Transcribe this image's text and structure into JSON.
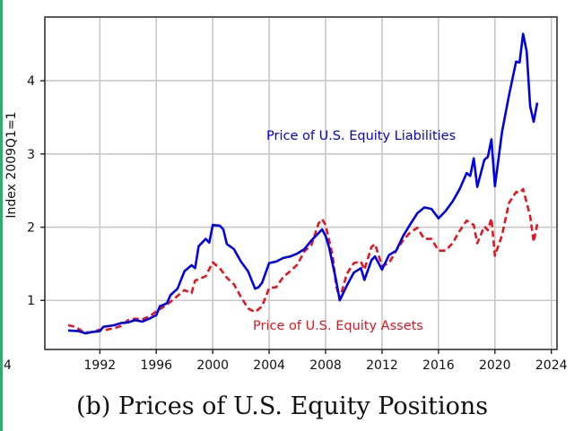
{
  "caption": "(b) Prices of U.S. Equity Positions",
  "stray_label": "4",
  "chart_data": {
    "type": "line",
    "title": "",
    "xlabel": "",
    "ylabel": "Index 2009Q1=1",
    "xlim": [
      1988.1,
      2024.4
    ],
    "ylim": [
      0.33,
      4.87
    ],
    "grid": true,
    "xticks": [
      1992,
      1996,
      2000,
      2004,
      2008,
      2012,
      2016,
      2020,
      2024
    ],
    "xtick_labels": [
      "1992",
      "1996",
      "2000",
      "2004",
      "2008",
      "2012",
      "2016",
      "2020",
      "2024"
    ],
    "yticks": [
      1,
      2,
      3,
      4
    ],
    "ytick_labels": [
      "1",
      "2",
      "3",
      "4"
    ],
    "legend": "none (inline annotations)",
    "series": [
      {
        "name": "Price of U.S. Equity Liabilities",
        "color": "#0000e6",
        "style": "solid",
        "annotation": "Price of U.S. Equity Liabilities",
        "x": [
          1989.75,
          1990.5,
          1991,
          1991.5,
          1992,
          1992.25,
          1993,
          1993.5,
          1994,
          1994.5,
          1995,
          1995.5,
          1996,
          1996.25,
          1996.75,
          1997,
          1997.5,
          1998,
          1998.5,
          1998.75,
          1999,
          1999.5,
          1999.75,
          2000,
          2000.5,
          2000.75,
          2001,
          2001.5,
          2002,
          2002.5,
          2003,
          2003.25,
          2003.5,
          2004,
          2004.5,
          2005,
          2005.5,
          2006,
          2006.5,
          2007,
          2007.5,
          2007.75,
          2008,
          2008.25,
          2008.75,
          2009,
          2009.5,
          2010,
          2010.5,
          2010.75,
          2011.25,
          2011.5,
          2012,
          2012.5,
          2013,
          2013.5,
          2014,
          2014.5,
          2015,
          2015.5,
          2016,
          2016.5,
          2017,
          2017.5,
          2018,
          2018.25,
          2018.5,
          2018.75,
          2019.25,
          2019.5,
          2019.75,
          2020,
          2020.5,
          2021,
          2021.5,
          2021.75,
          2022,
          2022.25,
          2022.5,
          2022.75,
          2023
        ],
        "values": [
          0.59,
          0.58,
          0.55,
          0.57,
          0.58,
          0.64,
          0.66,
          0.69,
          0.7,
          0.73,
          0.71,
          0.75,
          0.8,
          0.92,
          0.96,
          1.07,
          1.16,
          1.4,
          1.48,
          1.44,
          1.74,
          1.84,
          1.79,
          2.03,
          2.02,
          1.97,
          1.77,
          1.7,
          1.53,
          1.4,
          1.16,
          1.18,
          1.24,
          1.51,
          1.53,
          1.58,
          1.6,
          1.64,
          1.7,
          1.82,
          1.92,
          1.97,
          1.88,
          1.72,
          1.27,
          1.0,
          1.2,
          1.38,
          1.44,
          1.28,
          1.55,
          1.6,
          1.42,
          1.62,
          1.68,
          1.88,
          2.04,
          2.19,
          2.27,
          2.25,
          2.12,
          2.22,
          2.35,
          2.52,
          2.74,
          2.7,
          2.94,
          2.55,
          2.92,
          2.96,
          3.2,
          2.56,
          3.3,
          3.8,
          4.26,
          4.25,
          4.64,
          4.4,
          3.65,
          3.44,
          3.7
        ]
      },
      {
        "name": "Price of U.S. Equity Assets",
        "color": "#e6141e",
        "style": "dashed",
        "annotation": "Price of U.S. Equity Assets",
        "x": [
          1989.75,
          1990.25,
          1990.75,
          1991.25,
          1992,
          1992.5,
          1993,
          1993.5,
          1994,
          1994.5,
          1995,
          1995.5,
          1996,
          1996.5,
          1997,
          1997.5,
          1998,
          1998.5,
          1998.75,
          1999.5,
          2000,
          2000.5,
          2001,
          2001.5,
          2002,
          2002.5,
          2003,
          2003.5,
          2004,
          2004.5,
          2005,
          2005.5,
          2006,
          2006.5,
          2007,
          2007.5,
          2007.75,
          2008,
          2008.5,
          2008.75,
          2009,
          2009.5,
          2010,
          2010.5,
          2010.75,
          2011.25,
          2011.5,
          2012,
          2012.5,
          2013,
          2013.5,
          2014,
          2014.5,
          2015,
          2015.5,
          2016,
          2016.5,
          2017,
          2017.5,
          2018,
          2018.5,
          2018.75,
          2019.25,
          2019.5,
          2019.75,
          2020,
          2020.5,
          2021,
          2021.5,
          2021.75,
          2022,
          2022.5,
          2022.75,
          2023
        ],
        "values": [
          0.66,
          0.64,
          0.58,
          0.56,
          0.6,
          0.6,
          0.62,
          0.65,
          0.73,
          0.75,
          0.74,
          0.78,
          0.85,
          0.91,
          0.98,
          1.06,
          1.14,
          1.1,
          1.27,
          1.33,
          1.52,
          1.44,
          1.31,
          1.22,
          1.05,
          0.89,
          0.84,
          0.92,
          1.17,
          1.18,
          1.32,
          1.4,
          1.49,
          1.67,
          1.76,
          2.05,
          2.11,
          2.03,
          1.61,
          1.2,
          1.02,
          1.36,
          1.51,
          1.53,
          1.42,
          1.73,
          1.77,
          1.47,
          1.51,
          1.68,
          1.82,
          1.93,
          1.99,
          1.84,
          1.84,
          1.68,
          1.68,
          1.78,
          1.95,
          2.09,
          2.03,
          1.78,
          2.01,
          1.96,
          2.12,
          1.61,
          1.89,
          2.33,
          2.48,
          2.47,
          2.52,
          2.15,
          1.8,
          2.04
        ]
      }
    ]
  }
}
